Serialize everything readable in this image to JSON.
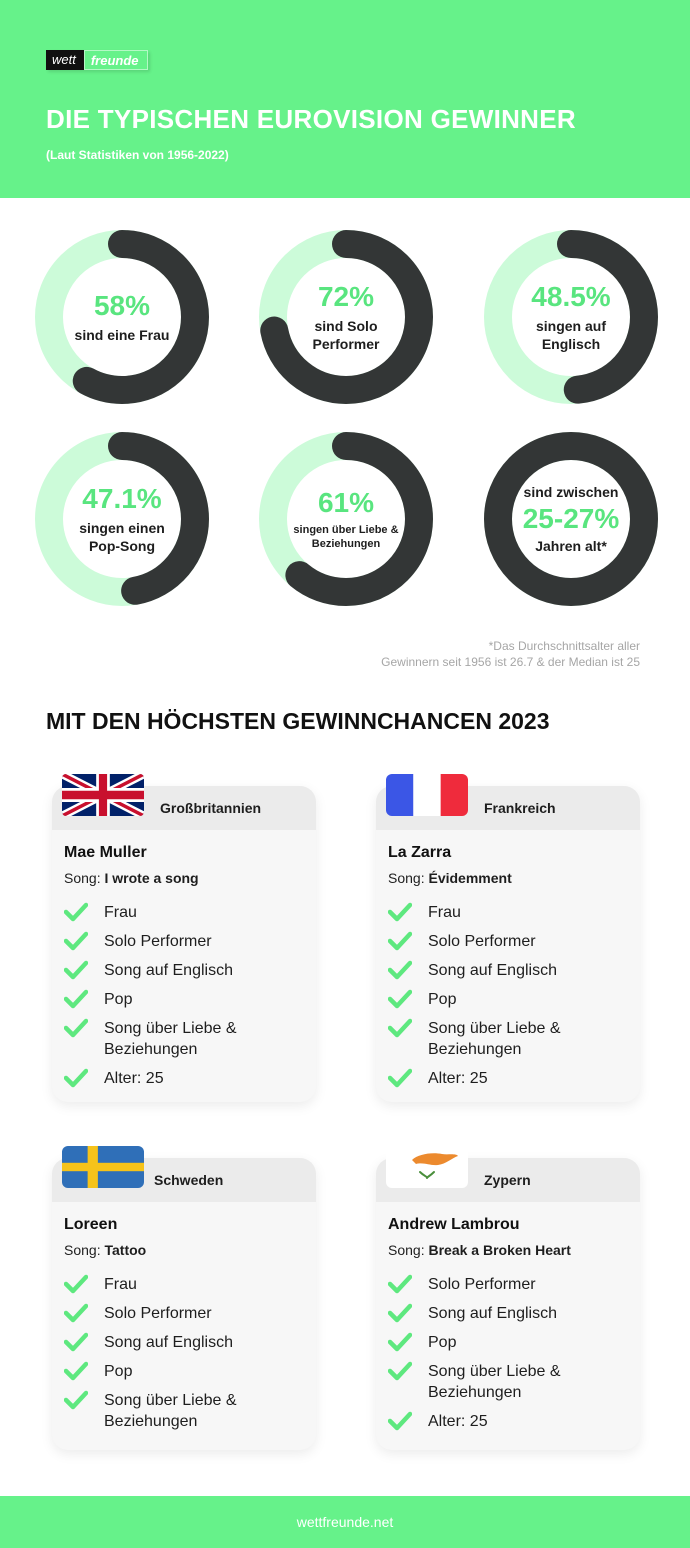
{
  "brand": {
    "part1": "wett",
    "part2": "freunde"
  },
  "header": {
    "title": "DIE TYPISCHEN EUROVISION GEWINNER",
    "subtitle": "(Laut Statistiken von 1956-2022)"
  },
  "stats": [
    {
      "value": "58%",
      "fraction": 0.58,
      "label": "sind eine Frau"
    },
    {
      "value": "72%",
      "fraction": 0.72,
      "label": "sind Solo Performer"
    },
    {
      "value": "48.5%",
      "fraction": 0.485,
      "label": "singen auf Englisch"
    },
    {
      "value": "47.1%",
      "fraction": 0.471,
      "label": "singen einen Pop-Song"
    },
    {
      "value": "61%",
      "fraction": 0.61,
      "label": "singen über Liebe & Beziehungen"
    },
    {
      "value": "25-27%",
      "fraction": 1.0,
      "label_top": "sind zwischen",
      "label": "Jahren alt*"
    }
  ],
  "footnote": {
    "line1": "*Das Durchschnittsalter aller",
    "line2": "Gewinnern seit 1956 ist 26.7 & der Median ist 25"
  },
  "section_title": "MIT DEN HÖCHSTEN GEWINNCHANCEN 2023",
  "song_prefix": "Song:",
  "candidates": [
    {
      "country": "Großbritannien",
      "flag": "uk-flag",
      "artist": "Mae Muller",
      "song": "I wrote a song",
      "items": [
        "Frau",
        "Solo Performer",
        "Song auf Englisch",
        "Pop",
        "Song über Liebe & Beziehungen",
        "Alter: 25"
      ]
    },
    {
      "country": "Frankreich",
      "flag": "france-flag",
      "artist": "La Zarra",
      "song": "Évidemment",
      "items": [
        "Frau",
        "Solo Performer",
        "Song auf Englisch",
        "Pop",
        "Song über Liebe & Beziehungen",
        "Alter: 25"
      ]
    },
    {
      "country": "Schweden",
      "flag": "sweden-flag",
      "artist": "Loreen",
      "song": "Tattoo",
      "items": [
        "Frau",
        "Solo Performer",
        "Song auf Englisch",
        "Pop",
        "Song über Liebe & Beziehungen"
      ]
    },
    {
      "country": "Zypern",
      "flag": "cyprus-flag",
      "artist": "Andrew Lambrou",
      "song": "Break a Broken Heart",
      "items": [
        "Solo Performer",
        "Song auf Englisch",
        "Pop",
        "Song über Liebe & Beziehungen",
        "Alter: 25"
      ]
    }
  ],
  "footer": {
    "text": "wettfreunde.net"
  },
  "colors": {
    "green": "#66f28a",
    "accent": "#59e57f",
    "ring_light": "#ccfbd9",
    "ring_dark": "#333636",
    "check": "#5ee87f"
  }
}
